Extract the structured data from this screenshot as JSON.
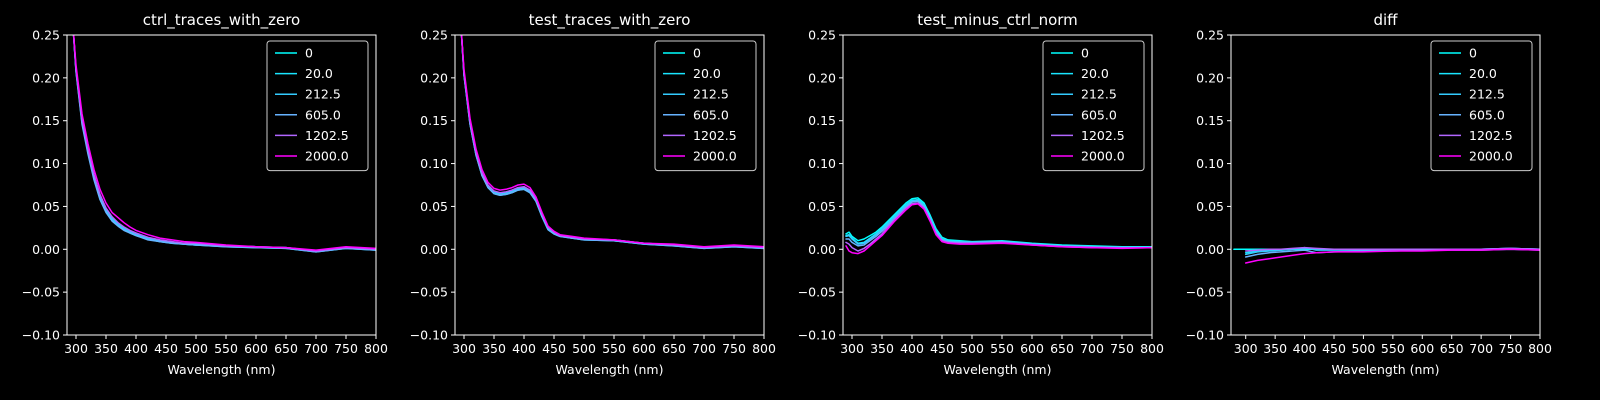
{
  "figure": {
    "background": "#000000",
    "foreground": "#ffffff",
    "series_colors": [
      "#00ffff",
      "#19e5ff",
      "#33ccff",
      "#66b2ff",
      "#b266ff",
      "#ff00ff"
    ]
  },
  "chart_data": [
    {
      "type": "line",
      "title": "ctrl_traces_with_zero",
      "xlabel": "Wavelength (nm)",
      "ylabel": "",
      "xlim": [
        285,
        800
      ],
      "ylim": [
        -0.1,
        0.25
      ],
      "xticks": [
        300,
        350,
        400,
        450,
        500,
        550,
        600,
        650,
        700,
        750,
        800
      ],
      "yticks": [
        -0.1,
        -0.05,
        0.0,
        0.05,
        0.1,
        0.15,
        0.2,
        0.25
      ],
      "legend_position": "top-right",
      "grid": false,
      "x": [
        285,
        290,
        295,
        300,
        310,
        320,
        330,
        340,
        350,
        360,
        370,
        380,
        390,
        400,
        420,
        440,
        460,
        480,
        500,
        550,
        600,
        650,
        700,
        750,
        800
      ],
      "series": [
        {
          "name": "0",
          "values": [
            0.26,
            0.26,
            0.26,
            0.21,
            0.15,
            0.115,
            0.085,
            0.062,
            0.046,
            0.036,
            0.03,
            0.025,
            0.021,
            0.018,
            0.013,
            0.01,
            0.008,
            0.007,
            0.006,
            0.004,
            0.003,
            0.002,
            -0.002,
            0.002,
            0.0
          ]
        },
        {
          "name": "20.0",
          "values": [
            0.26,
            0.26,
            0.26,
            0.208,
            0.148,
            0.113,
            0.083,
            0.06,
            0.044,
            0.034,
            0.028,
            0.023,
            0.019,
            0.016,
            0.012,
            0.009,
            0.007,
            0.006,
            0.005,
            0.003,
            0.002,
            0.001,
            -0.003,
            0.001,
            -0.001
          ]
        },
        {
          "name": "212.5",
          "values": [
            0.26,
            0.26,
            0.26,
            0.209,
            0.149,
            0.114,
            0.084,
            0.061,
            0.045,
            0.035,
            0.029,
            0.024,
            0.02,
            0.017,
            0.012,
            0.009,
            0.008,
            0.006,
            0.005,
            0.004,
            0.002,
            0.002,
            -0.002,
            0.002,
            0.0
          ]
        },
        {
          "name": "605.0",
          "values": [
            0.26,
            0.26,
            0.26,
            0.207,
            0.146,
            0.111,
            0.081,
            0.058,
            0.043,
            0.033,
            0.027,
            0.022,
            0.019,
            0.016,
            0.011,
            0.009,
            0.007,
            0.006,
            0.005,
            0.003,
            0.002,
            0.001,
            -0.003,
            0.001,
            -0.001
          ]
        },
        {
          "name": "1202.5",
          "values": [
            0.26,
            0.26,
            0.26,
            0.211,
            0.152,
            0.117,
            0.087,
            0.064,
            0.048,
            0.038,
            0.031,
            0.026,
            0.022,
            0.019,
            0.014,
            0.011,
            0.009,
            0.007,
            0.007,
            0.004,
            0.003,
            0.002,
            -0.002,
            0.002,
            0.0
          ]
        },
        {
          "name": "2000.0",
          "values": [
            0.26,
            0.26,
            0.26,
            0.215,
            0.158,
            0.123,
            0.093,
            0.07,
            0.054,
            0.043,
            0.037,
            0.031,
            0.026,
            0.022,
            0.017,
            0.013,
            0.011,
            0.009,
            0.008,
            0.005,
            0.003,
            0.002,
            -0.001,
            0.003,
            0.001
          ]
        }
      ]
    },
    {
      "type": "line",
      "title": "test_traces_with_zero",
      "xlabel": "Wavelength (nm)",
      "ylabel": "",
      "xlim": [
        285,
        800
      ],
      "ylim": [
        -0.1,
        0.25
      ],
      "xticks": [
        300,
        350,
        400,
        450,
        500,
        550,
        600,
        650,
        700,
        750,
        800
      ],
      "yticks": [
        -0.1,
        -0.05,
        0.0,
        0.05,
        0.1,
        0.15,
        0.2,
        0.25
      ],
      "legend_position": "top-right",
      "grid": false,
      "x": [
        285,
        290,
        295,
        300,
        310,
        320,
        330,
        340,
        350,
        360,
        370,
        380,
        390,
        400,
        410,
        420,
        430,
        440,
        450,
        460,
        480,
        500,
        550,
        600,
        650,
        700,
        750,
        800
      ],
      "series": [
        {
          "name": "0",
          "values": [
            0.26,
            0.26,
            0.26,
            0.205,
            0.148,
            0.112,
            0.088,
            0.074,
            0.067,
            0.065,
            0.066,
            0.068,
            0.071,
            0.072,
            0.068,
            0.058,
            0.04,
            0.025,
            0.02,
            0.016,
            0.014,
            0.012,
            0.011,
            0.007,
            0.005,
            0.002,
            0.004,
            0.002
          ]
        },
        {
          "name": "20.0",
          "values": [
            0.26,
            0.26,
            0.26,
            0.203,
            0.146,
            0.11,
            0.086,
            0.072,
            0.065,
            0.063,
            0.064,
            0.066,
            0.069,
            0.07,
            0.066,
            0.056,
            0.038,
            0.023,
            0.018,
            0.015,
            0.013,
            0.011,
            0.01,
            0.006,
            0.004,
            0.001,
            0.003,
            0.001
          ]
        },
        {
          "name": "212.5",
          "values": [
            0.26,
            0.26,
            0.26,
            0.204,
            0.147,
            0.111,
            0.087,
            0.073,
            0.066,
            0.064,
            0.065,
            0.067,
            0.07,
            0.071,
            0.067,
            0.057,
            0.039,
            0.024,
            0.019,
            0.016,
            0.013,
            0.012,
            0.01,
            0.007,
            0.005,
            0.002,
            0.004,
            0.002
          ]
        },
        {
          "name": "605.0",
          "values": [
            0.26,
            0.26,
            0.26,
            0.203,
            0.146,
            0.11,
            0.086,
            0.072,
            0.065,
            0.063,
            0.064,
            0.066,
            0.069,
            0.07,
            0.066,
            0.056,
            0.038,
            0.023,
            0.018,
            0.015,
            0.013,
            0.011,
            0.01,
            0.006,
            0.004,
            0.001,
            0.003,
            0.001
          ]
        },
        {
          "name": "1202.5",
          "values": [
            0.26,
            0.26,
            0.26,
            0.206,
            0.149,
            0.113,
            0.089,
            0.075,
            0.068,
            0.066,
            0.067,
            0.069,
            0.072,
            0.073,
            0.069,
            0.059,
            0.041,
            0.026,
            0.02,
            0.016,
            0.014,
            0.012,
            0.011,
            0.007,
            0.005,
            0.002,
            0.004,
            0.002
          ]
        },
        {
          "name": "2000.0",
          "values": [
            0.26,
            0.26,
            0.26,
            0.21,
            0.153,
            0.117,
            0.093,
            0.078,
            0.071,
            0.069,
            0.07,
            0.072,
            0.075,
            0.076,
            0.072,
            0.061,
            0.043,
            0.027,
            0.021,
            0.017,
            0.015,
            0.013,
            0.011,
            0.007,
            0.006,
            0.003,
            0.005,
            0.003
          ]
        }
      ]
    },
    {
      "type": "line",
      "title": "test_minus_ctrl_norm",
      "xlabel": "Wavelength (nm)",
      "ylabel": "",
      "xlim": [
        285,
        800
      ],
      "ylim": [
        -0.1,
        0.25
      ],
      "xticks": [
        300,
        350,
        400,
        450,
        500,
        550,
        600,
        650,
        700,
        750,
        800
      ],
      "yticks": [
        -0.1,
        -0.05,
        0.0,
        0.05,
        0.1,
        0.15,
        0.2,
        0.25
      ],
      "legend_position": "top-right",
      "grid": false,
      "x": [
        290,
        295,
        300,
        310,
        320,
        330,
        340,
        350,
        360,
        370,
        380,
        390,
        400,
        410,
        420,
        430,
        440,
        450,
        460,
        480,
        500,
        550,
        600,
        650,
        700,
        750,
        800
      ],
      "series": [
        {
          "name": "0",
          "values": [
            0.018,
            0.02,
            0.015,
            0.01,
            0.012,
            0.016,
            0.02,
            0.026,
            0.033,
            0.04,
            0.047,
            0.054,
            0.059,
            0.06,
            0.054,
            0.04,
            0.024,
            0.014,
            0.011,
            0.01,
            0.009,
            0.01,
            0.007,
            0.005,
            0.004,
            0.003,
            0.003
          ]
        },
        {
          "name": "20.0",
          "values": [
            0.016,
            0.017,
            0.013,
            0.007,
            0.008,
            0.013,
            0.018,
            0.024,
            0.031,
            0.038,
            0.045,
            0.052,
            0.057,
            0.058,
            0.052,
            0.038,
            0.022,
            0.012,
            0.01,
            0.009,
            0.008,
            0.009,
            0.006,
            0.004,
            0.003,
            0.002,
            0.002
          ]
        },
        {
          "name": "212.5",
          "values": [
            0.015,
            0.016,
            0.012,
            0.006,
            0.007,
            0.012,
            0.017,
            0.023,
            0.03,
            0.037,
            0.044,
            0.051,
            0.056,
            0.057,
            0.051,
            0.037,
            0.021,
            0.012,
            0.009,
            0.008,
            0.008,
            0.009,
            0.006,
            0.004,
            0.003,
            0.002,
            0.002
          ]
        },
        {
          "name": "605.0",
          "values": [
            0.012,
            0.012,
            0.008,
            0.004,
            0.005,
            0.01,
            0.015,
            0.021,
            0.028,
            0.035,
            0.042,
            0.049,
            0.055,
            0.056,
            0.05,
            0.036,
            0.02,
            0.011,
            0.009,
            0.008,
            0.008,
            0.009,
            0.006,
            0.004,
            0.003,
            0.002,
            0.002
          ]
        },
        {
          "name": "1202.5",
          "values": [
            0.008,
            0.006,
            0.002,
            -0.002,
            0.001,
            0.006,
            0.012,
            0.018,
            0.026,
            0.034,
            0.041,
            0.048,
            0.053,
            0.054,
            0.048,
            0.034,
            0.018,
            0.01,
            0.008,
            0.007,
            0.007,
            0.008,
            0.005,
            0.003,
            0.002,
            0.002,
            0.002
          ]
        },
        {
          "name": "2000.0",
          "values": [
            0.004,
            -0.002,
            -0.004,
            -0.005,
            -0.002,
            0.004,
            0.01,
            0.016,
            0.024,
            0.032,
            0.039,
            0.046,
            0.052,
            0.053,
            0.047,
            0.033,
            0.017,
            0.009,
            0.007,
            0.006,
            0.006,
            0.007,
            0.005,
            0.003,
            0.002,
            0.001,
            0.002
          ]
        }
      ]
    },
    {
      "type": "line",
      "title": "diff",
      "xlabel": "Wavelength (nm)",
      "ylabel": "",
      "xlim": [
        275,
        800
      ],
      "ylim": [
        -0.1,
        0.25
      ],
      "xticks": [
        300,
        350,
        400,
        450,
        500,
        550,
        600,
        650,
        700,
        750,
        800
      ],
      "yticks": [
        -0.1,
        -0.05,
        0.0,
        0.05,
        0.1,
        0.15,
        0.2,
        0.25
      ],
      "legend_position": "top-right",
      "grid": false,
      "x": [
        280,
        290,
        300,
        320,
        340,
        360,
        380,
        400,
        420,
        450,
        500,
        550,
        600,
        650,
        700,
        750,
        800
      ],
      "series": [
        {
          "name": "0",
          "values": [
            0.0,
            0.0,
            0.0,
            0.0,
            0.0,
            0.0,
            0.0,
            0.0,
            0.0,
            0.0,
            0.0,
            0.0,
            0.0,
            0.0,
            0.0,
            0.0,
            0.0
          ]
        },
        {
          "name": "20.0",
          "values": [
            null,
            null,
            -0.004,
            -0.002,
            -0.001,
            -0.001,
            0.0,
            0.001,
            0.0,
            0.0,
            0.0,
            0.0,
            0.0,
            0.0,
            0.0,
            0.001,
            0.0
          ]
        },
        {
          "name": "212.5",
          "values": [
            null,
            null,
            -0.006,
            -0.003,
            -0.002,
            -0.001,
            0.0,
            0.002,
            -0.001,
            -0.001,
            -0.001,
            -0.001,
            -0.001,
            0.0,
            0.0,
            0.001,
            0.0
          ]
        },
        {
          "name": "605.0",
          "values": [
            null,
            null,
            -0.009,
            -0.006,
            -0.004,
            -0.003,
            -0.002,
            -0.001,
            -0.004,
            -0.003,
            -0.002,
            -0.002,
            -0.001,
            -0.001,
            -0.001,
            0.0,
            -0.001
          ]
        },
        {
          "name": "1202.5",
          "values": [
            null,
            null,
            -0.002,
            -0.001,
            0.0,
            0.0,
            0.001,
            0.002,
            0.001,
            0.0,
            0.0,
            0.0,
            0.0,
            0.0,
            0.0,
            0.001,
            0.0
          ]
        },
        {
          "name": "2000.0",
          "values": [
            null,
            null,
            -0.016,
            -0.013,
            -0.011,
            -0.009,
            -0.007,
            -0.005,
            -0.004,
            -0.003,
            -0.003,
            -0.002,
            -0.002,
            -0.001,
            -0.001,
            0.0,
            -0.001
          ]
        }
      ]
    }
  ]
}
